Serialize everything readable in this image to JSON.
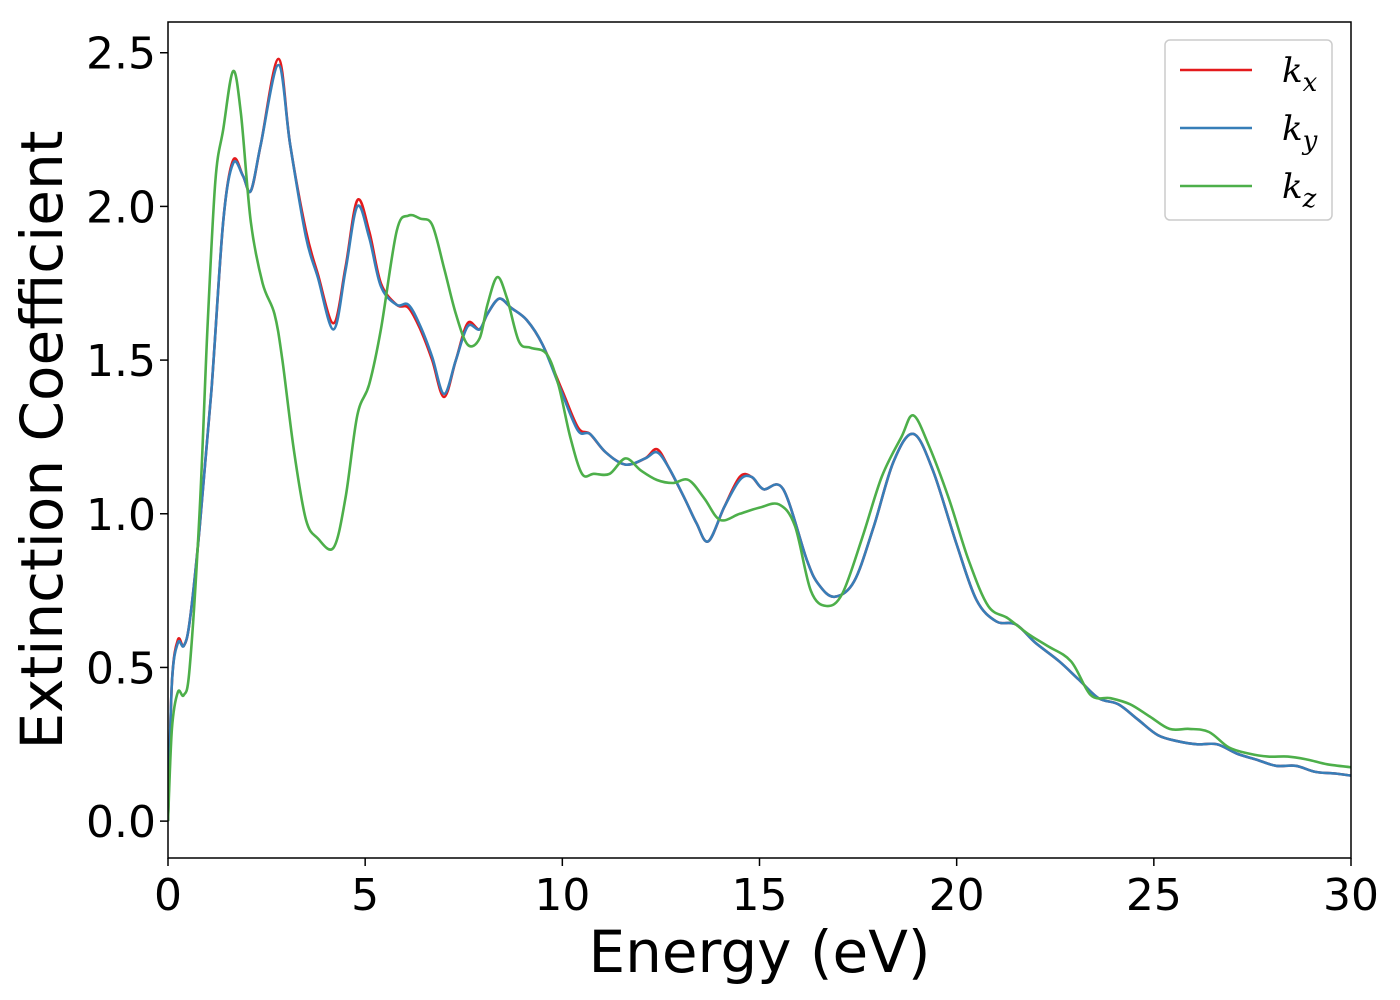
{
  "chart_data": {
    "type": "line",
    "xlabel": "Energy (eV)",
    "ylabel": "Extinction Coefficient",
    "xlim": [
      0,
      30
    ],
    "ylim": [
      -0.12,
      2.6
    ],
    "xticks": [
      0,
      5,
      10,
      15,
      20,
      25,
      30
    ],
    "xtick_labels": [
      "0",
      "5",
      "10",
      "15",
      "20",
      "25",
      "30"
    ],
    "yticks": [
      0.0,
      0.5,
      1.0,
      1.5,
      2.0,
      2.5
    ],
    "ytick_labels": [
      "0.0",
      "0.5",
      "1.0",
      "1.5",
      "2.0",
      "2.5"
    ],
    "grid": false,
    "legend_position": "top-right",
    "series": [
      {
        "name": "k",
        "subscript": "x",
        "color": "#e41a1c",
        "points": [
          [
            0,
            0
          ],
          [
            0.1,
            0.45
          ],
          [
            0.25,
            0.59
          ],
          [
            0.4,
            0.57
          ],
          [
            0.55,
            0.65
          ],
          [
            0.8,
            0.95
          ],
          [
            1.1,
            1.4
          ],
          [
            1.4,
            1.95
          ],
          [
            1.65,
            2.15
          ],
          [
            1.9,
            2.1
          ],
          [
            2.1,
            2.05
          ],
          [
            2.35,
            2.2
          ],
          [
            2.8,
            2.48
          ],
          [
            3.1,
            2.2
          ],
          [
            3.5,
            1.92
          ],
          [
            3.8,
            1.78
          ],
          [
            4.2,
            1.62
          ],
          [
            4.5,
            1.8
          ],
          [
            4.8,
            2.02
          ],
          [
            5.1,
            1.92
          ],
          [
            5.4,
            1.75
          ],
          [
            5.8,
            1.68
          ],
          [
            6.1,
            1.67
          ],
          [
            6.4,
            1.6
          ],
          [
            6.7,
            1.5
          ],
          [
            7.0,
            1.38
          ],
          [
            7.3,
            1.5
          ],
          [
            7.6,
            1.62
          ],
          [
            7.9,
            1.6
          ],
          [
            8.1,
            1.65
          ],
          [
            8.4,
            1.7
          ],
          [
            8.7,
            1.67
          ],
          [
            9.1,
            1.63
          ],
          [
            9.5,
            1.55
          ],
          [
            10,
            1.4
          ],
          [
            10.4,
            1.28
          ],
          [
            10.7,
            1.26
          ],
          [
            11.1,
            1.2
          ],
          [
            11.6,
            1.16
          ],
          [
            12.1,
            1.18
          ],
          [
            12.4,
            1.21
          ],
          [
            12.7,
            1.15
          ],
          [
            13.1,
            1.05
          ],
          [
            13.4,
            0.97
          ],
          [
            13.7,
            0.91
          ],
          [
            14.1,
            1.02
          ],
          [
            14.5,
            1.12
          ],
          [
            14.8,
            1.12
          ],
          [
            15.1,
            1.08
          ],
          [
            15.6,
            1.08
          ],
          [
            16.2,
            0.85
          ],
          [
            16.5,
            0.77
          ],
          [
            16.9,
            0.73
          ],
          [
            17.4,
            0.78
          ],
          [
            17.9,
            0.96
          ],
          [
            18.4,
            1.17
          ],
          [
            18.9,
            1.26
          ],
          [
            19.4,
            1.14
          ],
          [
            20,
            0.9
          ],
          [
            20.5,
            0.72
          ],
          [
            21,
            0.65
          ],
          [
            21.5,
            0.64
          ],
          [
            22.0,
            0.58
          ],
          [
            22.6,
            0.52
          ],
          [
            23.1,
            0.46
          ],
          [
            23.6,
            0.4
          ],
          [
            24.1,
            0.38
          ],
          [
            24.6,
            0.33
          ],
          [
            25.1,
            0.28
          ],
          [
            25.6,
            0.26
          ],
          [
            26.1,
            0.25
          ],
          [
            26.6,
            0.25
          ],
          [
            27.1,
            0.22
          ],
          [
            27.6,
            0.2
          ],
          [
            28.1,
            0.18
          ],
          [
            28.6,
            0.18
          ],
          [
            29.1,
            0.16
          ],
          [
            29.6,
            0.155
          ],
          [
            30,
            0.148
          ]
        ]
      },
      {
        "name": "k",
        "subscript": "y",
        "color": "#377eb8",
        "points": [
          [
            0,
            0
          ],
          [
            0.1,
            0.45
          ],
          [
            0.25,
            0.58
          ],
          [
            0.4,
            0.57
          ],
          [
            0.55,
            0.65
          ],
          [
            0.8,
            0.95
          ],
          [
            1.1,
            1.4
          ],
          [
            1.4,
            1.95
          ],
          [
            1.65,
            2.14
          ],
          [
            1.9,
            2.1
          ],
          [
            2.1,
            2.05
          ],
          [
            2.35,
            2.2
          ],
          [
            2.8,
            2.46
          ],
          [
            3.1,
            2.2
          ],
          [
            3.5,
            1.9
          ],
          [
            3.8,
            1.77
          ],
          [
            4.2,
            1.6
          ],
          [
            4.5,
            1.79
          ],
          [
            4.8,
            2.0
          ],
          [
            5.1,
            1.9
          ],
          [
            5.4,
            1.74
          ],
          [
            5.8,
            1.68
          ],
          [
            6.1,
            1.68
          ],
          [
            6.4,
            1.61
          ],
          [
            6.7,
            1.51
          ],
          [
            7.0,
            1.39
          ],
          [
            7.3,
            1.5
          ],
          [
            7.6,
            1.61
          ],
          [
            7.9,
            1.6
          ],
          [
            8.1,
            1.65
          ],
          [
            8.4,
            1.7
          ],
          [
            8.7,
            1.67
          ],
          [
            9.1,
            1.63
          ],
          [
            9.5,
            1.55
          ],
          [
            10,
            1.39
          ],
          [
            10.4,
            1.27
          ],
          [
            10.7,
            1.26
          ],
          [
            11.1,
            1.2
          ],
          [
            11.6,
            1.16
          ],
          [
            12.1,
            1.18
          ],
          [
            12.4,
            1.2
          ],
          [
            12.7,
            1.15
          ],
          [
            13.1,
            1.05
          ],
          [
            13.4,
            0.97
          ],
          [
            13.7,
            0.91
          ],
          [
            14.1,
            1.02
          ],
          [
            14.5,
            1.11
          ],
          [
            14.8,
            1.12
          ],
          [
            15.1,
            1.08
          ],
          [
            15.6,
            1.08
          ],
          [
            16.2,
            0.85
          ],
          [
            16.5,
            0.77
          ],
          [
            16.9,
            0.73
          ],
          [
            17.4,
            0.78
          ],
          [
            17.9,
            0.96
          ],
          [
            18.4,
            1.17
          ],
          [
            18.9,
            1.26
          ],
          [
            19.4,
            1.14
          ],
          [
            20,
            0.9
          ],
          [
            20.5,
            0.72
          ],
          [
            21,
            0.65
          ],
          [
            21.5,
            0.64
          ],
          [
            22.0,
            0.58
          ],
          [
            22.6,
            0.52
          ],
          [
            23.1,
            0.46
          ],
          [
            23.6,
            0.4
          ],
          [
            24.1,
            0.38
          ],
          [
            24.6,
            0.33
          ],
          [
            25.1,
            0.28
          ],
          [
            25.6,
            0.26
          ],
          [
            26.1,
            0.25
          ],
          [
            26.6,
            0.25
          ],
          [
            27.1,
            0.22
          ],
          [
            27.6,
            0.2
          ],
          [
            28.1,
            0.18
          ],
          [
            28.6,
            0.18
          ],
          [
            29.1,
            0.16
          ],
          [
            29.6,
            0.155
          ],
          [
            30,
            0.148
          ]
        ]
      },
      {
        "name": "k",
        "subscript": "z",
        "color": "#4daf4a",
        "points": [
          [
            0,
            0
          ],
          [
            0.1,
            0.3
          ],
          [
            0.25,
            0.42
          ],
          [
            0.4,
            0.41
          ],
          [
            0.55,
            0.5
          ],
          [
            0.8,
            1.0
          ],
          [
            1.0,
            1.6
          ],
          [
            1.2,
            2.08
          ],
          [
            1.4,
            2.25
          ],
          [
            1.65,
            2.44
          ],
          [
            1.85,
            2.3
          ],
          [
            2.1,
            1.95
          ],
          [
            2.4,
            1.75
          ],
          [
            2.7,
            1.65
          ],
          [
            2.9,
            1.5
          ],
          [
            3.2,
            1.2
          ],
          [
            3.5,
            0.98
          ],
          [
            3.8,
            0.92
          ],
          [
            4.2,
            0.89
          ],
          [
            4.5,
            1.05
          ],
          [
            4.8,
            1.32
          ],
          [
            5.1,
            1.42
          ],
          [
            5.4,
            1.6
          ],
          [
            5.8,
            1.92
          ],
          [
            6.1,
            1.97
          ],
          [
            6.4,
            1.96
          ],
          [
            6.7,
            1.94
          ],
          [
            7.0,
            1.8
          ],
          [
            7.3,
            1.65
          ],
          [
            7.6,
            1.55
          ],
          [
            7.9,
            1.57
          ],
          [
            8.1,
            1.68
          ],
          [
            8.35,
            1.77
          ],
          [
            8.6,
            1.7
          ],
          [
            8.9,
            1.56
          ],
          [
            9.2,
            1.54
          ],
          [
            9.6,
            1.52
          ],
          [
            9.9,
            1.42
          ],
          [
            10.2,
            1.25
          ],
          [
            10.5,
            1.13
          ],
          [
            10.8,
            1.13
          ],
          [
            11.2,
            1.13
          ],
          [
            11.6,
            1.18
          ],
          [
            12.0,
            1.14
          ],
          [
            12.4,
            1.11
          ],
          [
            12.8,
            1.1
          ],
          [
            13.2,
            1.11
          ],
          [
            13.6,
            1.05
          ],
          [
            14.0,
            0.98
          ],
          [
            14.5,
            1.0
          ],
          [
            15.0,
            1.02
          ],
          [
            15.5,
            1.03
          ],
          [
            15.9,
            0.96
          ],
          [
            16.3,
            0.75
          ],
          [
            16.7,
            0.7
          ],
          [
            17.1,
            0.74
          ],
          [
            17.6,
            0.92
          ],
          [
            18.1,
            1.12
          ],
          [
            18.6,
            1.25
          ],
          [
            18.9,
            1.32
          ],
          [
            19.3,
            1.22
          ],
          [
            19.8,
            1.05
          ],
          [
            20.3,
            0.85
          ],
          [
            20.8,
            0.7
          ],
          [
            21.3,
            0.66
          ],
          [
            21.8,
            0.61
          ],
          [
            22.3,
            0.57
          ],
          [
            22.9,
            0.52
          ],
          [
            23.4,
            0.41
          ],
          [
            23.9,
            0.4
          ],
          [
            24.4,
            0.38
          ],
          [
            24.9,
            0.34
          ],
          [
            25.4,
            0.3
          ],
          [
            25.9,
            0.3
          ],
          [
            26.4,
            0.29
          ],
          [
            26.9,
            0.24
          ],
          [
            27.4,
            0.22
          ],
          [
            27.9,
            0.21
          ],
          [
            28.4,
            0.21
          ],
          [
            28.9,
            0.2
          ],
          [
            29.4,
            0.185
          ],
          [
            30,
            0.175
          ]
        ]
      }
    ]
  }
}
